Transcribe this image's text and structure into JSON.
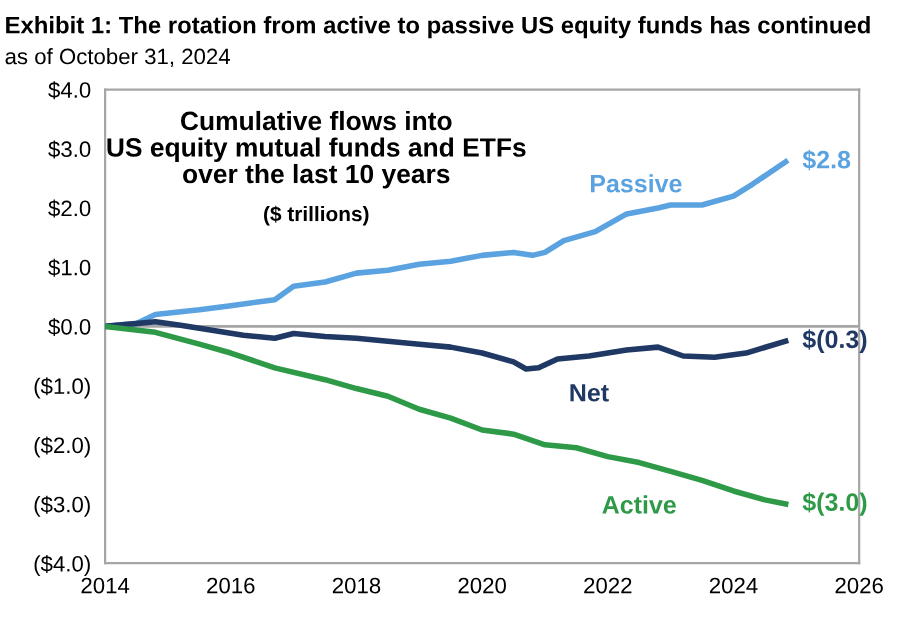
{
  "chart_data": {
    "type": "line",
    "title": "Exhibit 1: The rotation from active to passive US equity funds has continued",
    "subtitle": "as of October 31, 2024",
    "annotations": [
      "Cumulative flows into\nUS equity mutual funds and ETFs\nover the last 10 years",
      "($ trillions)"
    ],
    "xlim": [
      2014,
      2026
    ],
    "xticks": [
      2014,
      2016,
      2018,
      2020,
      2022,
      2024,
      2026
    ],
    "ylim": [
      -4,
      4
    ],
    "yticks": [
      {
        "value": 4,
        "label": "$4.0"
      },
      {
        "value": 3,
        "label": "$3.0"
      },
      {
        "value": 2,
        "label": "$2.0"
      },
      {
        "value": 1,
        "label": "$1.0"
      },
      {
        "value": 0,
        "label": "$0.0"
      },
      {
        "value": -1,
        "label": "($1.0)"
      },
      {
        "value": -2,
        "label": "($2.0)"
      },
      {
        "value": -3,
        "label": "($3.0)"
      },
      {
        "value": -4,
        "label": "($4.0)"
      }
    ],
    "grid": false,
    "legend": false,
    "marker": "none",
    "line_style": "solid",
    "ref_lines": [
      {
        "axis": "y",
        "value": 0,
        "color": "#a6a6a6"
      }
    ],
    "series": [
      {
        "name": "Passive",
        "color": "#5ba3e0",
        "x": [
          2014,
          2014.5,
          2014.8,
          2015.5,
          2016,
          2016.7,
          2017,
          2017.5,
          2018,
          2018.5,
          2019,
          2019.5,
          2020,
          2020.5,
          2020.8,
          2021,
          2021.3,
          2021.8,
          2022.3,
          2022.8,
          2023,
          2023.5,
          2024,
          2024.3,
          2024.83
        ],
        "values": [
          0,
          0.05,
          0.2,
          0.28,
          0.35,
          0.45,
          0.68,
          0.75,
          0.9,
          0.95,
          1.05,
          1.1,
          1.2,
          1.25,
          1.2,
          1.25,
          1.45,
          1.6,
          1.9,
          2.0,
          2.05,
          2.05,
          2.2,
          2.4,
          2.78
        ],
        "value_labels": [
          null,
          null,
          null,
          null,
          null,
          null,
          null,
          null,
          null,
          null,
          null,
          null,
          null,
          null,
          null,
          null,
          null,
          null,
          null,
          null,
          null,
          null,
          null,
          null,
          "$2.8"
        ]
      },
      {
        "name": "Net",
        "color": "#1f3864",
        "x": [
          2014,
          2014.8,
          2015.2,
          2015.6,
          2016.2,
          2016.7,
          2017,
          2017.5,
          2018,
          2018.5,
          2019,
          2019.5,
          2020,
          2020.5,
          2020.7,
          2020.9,
          2021.2,
          2021.7,
          2022.3,
          2022.8,
          2023.2,
          2023.7,
          2024.2,
          2024.83
        ],
        "values": [
          0,
          0.08,
          0.02,
          -0.05,
          -0.15,
          -0.2,
          -0.12,
          -0.17,
          -0.2,
          -0.25,
          -0.3,
          -0.35,
          -0.45,
          -0.6,
          -0.72,
          -0.7,
          -0.55,
          -0.5,
          -0.4,
          -0.35,
          -0.5,
          -0.52,
          -0.45,
          -0.25
        ],
        "value_labels": [
          null,
          null,
          null,
          null,
          null,
          null,
          null,
          null,
          null,
          null,
          null,
          null,
          null,
          null,
          null,
          null,
          null,
          null,
          null,
          null,
          null,
          null,
          null,
          "$(0.3)"
        ]
      },
      {
        "name": "Active",
        "color": "#2e9a48",
        "x": [
          2014,
          2014.8,
          2015.5,
          2016,
          2016.7,
          2017.5,
          2018,
          2018.5,
          2019,
          2019.5,
          2020,
          2020.5,
          2021,
          2021.5,
          2022,
          2022.5,
          2023,
          2023.5,
          2024,
          2024.5,
          2024.83
        ],
        "values": [
          0,
          -0.1,
          -0.3,
          -0.45,
          -0.7,
          -0.9,
          -1.05,
          -1.18,
          -1.4,
          -1.55,
          -1.75,
          -1.82,
          -2.0,
          -2.05,
          -2.2,
          -2.3,
          -2.45,
          -2.6,
          -2.78,
          -2.93,
          -3.0
        ],
        "value_labels": [
          null,
          null,
          null,
          null,
          null,
          null,
          null,
          null,
          null,
          null,
          null,
          null,
          null,
          null,
          null,
          null,
          null,
          null,
          null,
          null,
          "$(3.0)"
        ]
      }
    ]
  }
}
